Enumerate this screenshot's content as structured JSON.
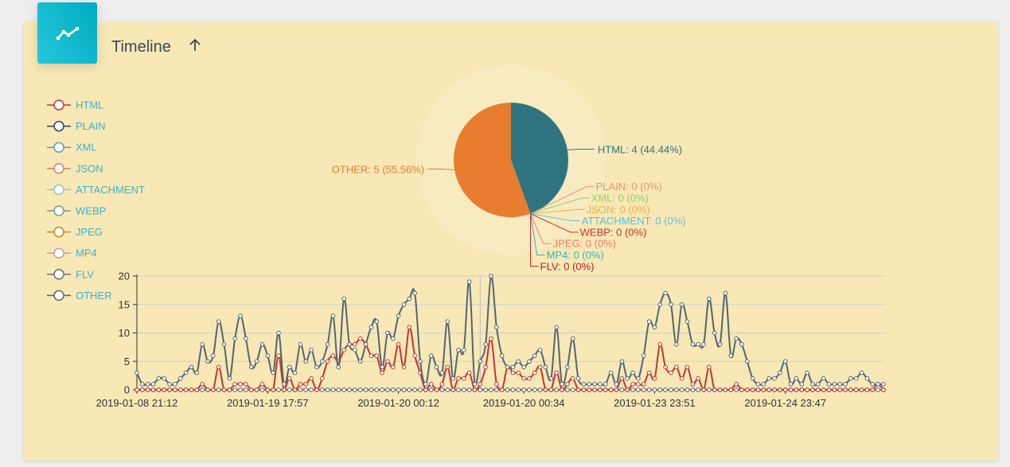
{
  "header": {
    "title": "Timeline",
    "chart_icon": "trend-line-icon",
    "sort_icon": "arrow-up-icon"
  },
  "colors": {
    "card_bg": "#f7e8b6",
    "HTML": "#c23531",
    "PLAIN": "#2f4554",
    "XML": "#61a0a8",
    "JSON": "#d48265",
    "ATTACHMENT": "#91c7ae",
    "WEBP": "#749f83",
    "JPEG": "#ca8622",
    "MP4": "#bda29a",
    "FLV": "#6e7074",
    "OTHER": "#546570",
    "legend_text": "#3fb1cb"
  },
  "legend": [
    "HTML",
    "PLAIN",
    "XML",
    "JSON",
    "ATTACHMENT",
    "WEBP",
    "JPEG",
    "MP4",
    "FLV",
    "OTHER"
  ],
  "chart_data": [
    {
      "type": "pie",
      "slices": [
        {
          "name": "HTML",
          "value": 4,
          "label": "HTML: 4 (44.44%)",
          "color": "#2f7480"
        },
        {
          "name": "PLAIN",
          "value": 0,
          "label": "PLAIN: 0 (0%)",
          "color": "#e8937f"
        },
        {
          "name": "XML",
          "value": 0,
          "label": "XML: 0 (0%)",
          "color": "#8fcf6a"
        },
        {
          "name": "JSON",
          "value": 0,
          "label": "JSON: 0 (0%)",
          "color": "#f0ad4e"
        },
        {
          "name": "ATTACHMENT",
          "value": 0,
          "label": "ATTACHMENT: 0 (0%)",
          "color": "#5bc0de"
        },
        {
          "name": "WEBP",
          "value": 0,
          "label": "WEBP: 0 (0%)",
          "color": "#c9302c"
        },
        {
          "name": "JPEG",
          "value": 0,
          "label": "JPEG: 0 (0%)",
          "color": "#f07f6a"
        },
        {
          "name": "MP4",
          "value": 0,
          "label": "MP4: 0 (0%)",
          "color": "#39b3b0"
        },
        {
          "name": "FLV",
          "value": 0,
          "label": "FLV: 0 (0%)",
          "color": "#b22222"
        },
        {
          "name": "OTHER",
          "value": 5,
          "label": "OTHER: 5 (55.56%)",
          "color": "#e87c2f"
        }
      ]
    },
    {
      "type": "line",
      "ylim": [
        0,
        20
      ],
      "yticks": [
        0,
        5,
        10,
        15,
        20
      ],
      "xtick_labels": [
        "2019-01-08 21:12",
        "2019-01-19 17:57",
        "2019-01-20 00:12",
        "2019-01-20 00:34",
        "2019-01-23 23:51",
        "2019-01-24 23:47"
      ],
      "series": [
        {
          "name": "OTHER",
          "color": "#546570",
          "values": [
            3,
            1,
            1,
            1,
            2,
            2,
            1,
            1,
            2,
            3,
            4,
            3,
            8,
            5,
            6,
            12,
            8,
            2,
            9,
            13,
            9,
            4,
            5,
            8,
            6,
            3,
            10,
            1,
            4,
            3,
            8,
            5,
            7,
            4,
            5,
            8,
            13,
            4,
            16,
            8,
            7,
            5,
            8,
            11,
            12,
            4,
            10,
            9,
            13,
            15,
            16,
            17,
            5,
            1,
            6,
            4,
            3,
            12,
            2,
            7,
            7,
            19,
            1,
            5,
            8,
            20,
            11,
            6,
            4,
            4,
            5,
            4,
            5,
            6,
            7,
            4,
            2,
            11,
            1,
            4,
            9,
            2,
            1,
            1,
            1,
            1,
            1,
            3,
            1,
            5,
            2,
            3,
            2,
            6,
            12,
            11,
            15,
            17,
            15,
            8,
            15,
            12,
            8,
            8,
            8,
            16,
            10,
            8,
            17,
            6,
            9,
            8,
            5,
            2,
            1,
            1,
            2,
            2,
            3,
            5,
            1,
            2,
            1,
            3,
            1,
            1,
            2,
            1,
            1,
            1,
            1,
            2,
            2,
            3,
            2,
            1,
            1,
            1
          ]
        },
        {
          "name": "HTML",
          "color": "#c23531",
          "values": [
            0,
            0,
            0,
            0,
            0,
            0,
            0,
            0,
            0,
            0,
            0,
            0,
            1,
            0,
            0,
            4,
            0,
            0,
            1,
            1,
            1,
            0,
            0,
            1,
            0,
            0,
            6,
            0,
            2,
            0,
            1,
            1,
            2,
            0,
            2,
            5,
            6,
            5,
            7,
            8,
            8,
            9,
            8,
            6,
            6,
            3,
            5,
            4,
            8,
            4,
            11,
            6,
            3,
            0,
            1,
            0,
            1,
            4,
            0,
            2,
            2,
            3,
            0,
            1,
            4,
            9,
            1,
            0,
            4,
            3,
            3,
            2,
            2,
            3,
            4,
            0,
            0,
            3,
            0,
            1,
            2,
            0,
            0,
            0,
            0,
            0,
            0,
            0,
            0,
            2,
            0,
            1,
            1,
            1,
            3,
            2,
            8,
            4,
            3,
            4,
            2,
            4,
            1,
            2,
            0,
            4,
            0,
            0,
            0,
            0,
            1,
            0,
            0,
            0,
            0,
            0,
            0,
            0,
            0,
            0,
            0,
            0,
            0,
            0,
            0,
            0,
            0,
            0,
            0,
            0,
            0,
            0,
            0,
            0,
            0,
            0,
            1,
            0
          ]
        },
        {
          "name": "PLAIN",
          "color": "#2f4554",
          "values": "zeros"
        },
        {
          "name": "XML",
          "color": "#61a0a8",
          "values": "zeros"
        },
        {
          "name": "JSON",
          "color": "#d48265",
          "values": "zeros"
        },
        {
          "name": "ATTACHMENT",
          "color": "#91c7ae",
          "values": "zeros"
        },
        {
          "name": "WEBP",
          "color": "#749f83",
          "values": "zeros"
        },
        {
          "name": "JPEG",
          "color": "#ca8622",
          "values": "zeros"
        },
        {
          "name": "MP4",
          "color": "#bda29a",
          "values": "zeros"
        },
        {
          "name": "FLV",
          "color": "#6e7074",
          "values": "zeros"
        }
      ]
    }
  ]
}
